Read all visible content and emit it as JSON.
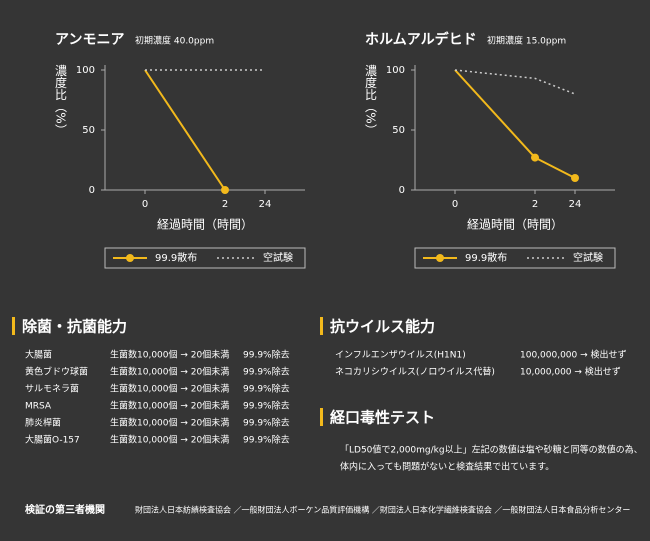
{
  "chart_data": [
    {
      "type": "line",
      "title": "アンモニア",
      "subtitle": "初期濃度 40.0ppm",
      "xlabel": "経過時間（時間）",
      "ylabel": "濃度比（%）",
      "categories": [
        "0",
        "2",
        "24"
      ],
      "series": [
        {
          "name": "99.9散布",
          "color": "#f2b91c",
          "values": [
            100,
            0,
            null
          ]
        },
        {
          "name": "空試験",
          "color": "#cccccc",
          "values": [
            100,
            100,
            100
          ]
        }
      ],
      "ylim": [
        0,
        100
      ],
      "yticks": [
        0,
        50,
        100
      ]
    },
    {
      "type": "line",
      "title": "ホルムアルデヒド",
      "subtitle": "初期濃度 15.0ppm",
      "xlabel": "経過時間（時間）",
      "ylabel": "濃度比（%）",
      "categories": [
        "0",
        "2",
        "24"
      ],
      "series": [
        {
          "name": "99.9散布",
          "color": "#f2b91c",
          "values": [
            100,
            27,
            10
          ]
        },
        {
          "name": "空試験",
          "color": "#cccccc",
          "values": [
            100,
            93,
            80
          ]
        }
      ],
      "ylim": [
        0,
        100
      ],
      "yticks": [
        0,
        50,
        100
      ]
    }
  ],
  "antibacterial": {
    "heading": "除菌・抗菌能力",
    "rows": [
      [
        "大腸菌",
        "生菌数10,000個 → 20個未満",
        "99.9%除去"
      ],
      [
        "黄色ブドウ球菌",
        "生菌数10,000個 → 20個未満",
        "99.9%除去"
      ],
      [
        "サルモネラ菌",
        "生菌数10,000個 → 20個未満",
        "99.9%除去"
      ],
      [
        "MRSA",
        "生菌数10,000個 → 20個未満",
        "99.9%除去"
      ],
      [
        "肺炎桿菌",
        "生菌数10,000個 → 20個未満",
        "99.9%除去"
      ],
      [
        "大腸菌O-157",
        "生菌数10,000個 → 20個未満",
        "99.9%除去"
      ]
    ]
  },
  "antiviral": {
    "heading": "抗ウイルス能力",
    "rows": [
      [
        "インフルエンザウイルス(H1N1)",
        "100,000,000 → 検出せず"
      ],
      [
        "ネコカリシウイルス(ノロウイルス代替)",
        "10,000,000 → 検出せず"
      ]
    ]
  },
  "toxicity": {
    "heading": "経口毒性テスト",
    "lines": [
      "「LD50値で2,000mg/kg以上」左記の数値は塩や砂糖と同等の数値の為、",
      "体内に入っても問題がないと検査結果で出ています。"
    ]
  },
  "footer": {
    "label": "検証の第三者機関",
    "text": "財団法人日本紡績検査協会 ／一般財団法人ボーケン品質評価機構 ／財団法人日本化学繊維検査協会 ／一般財団法人日本食品分析センター"
  }
}
